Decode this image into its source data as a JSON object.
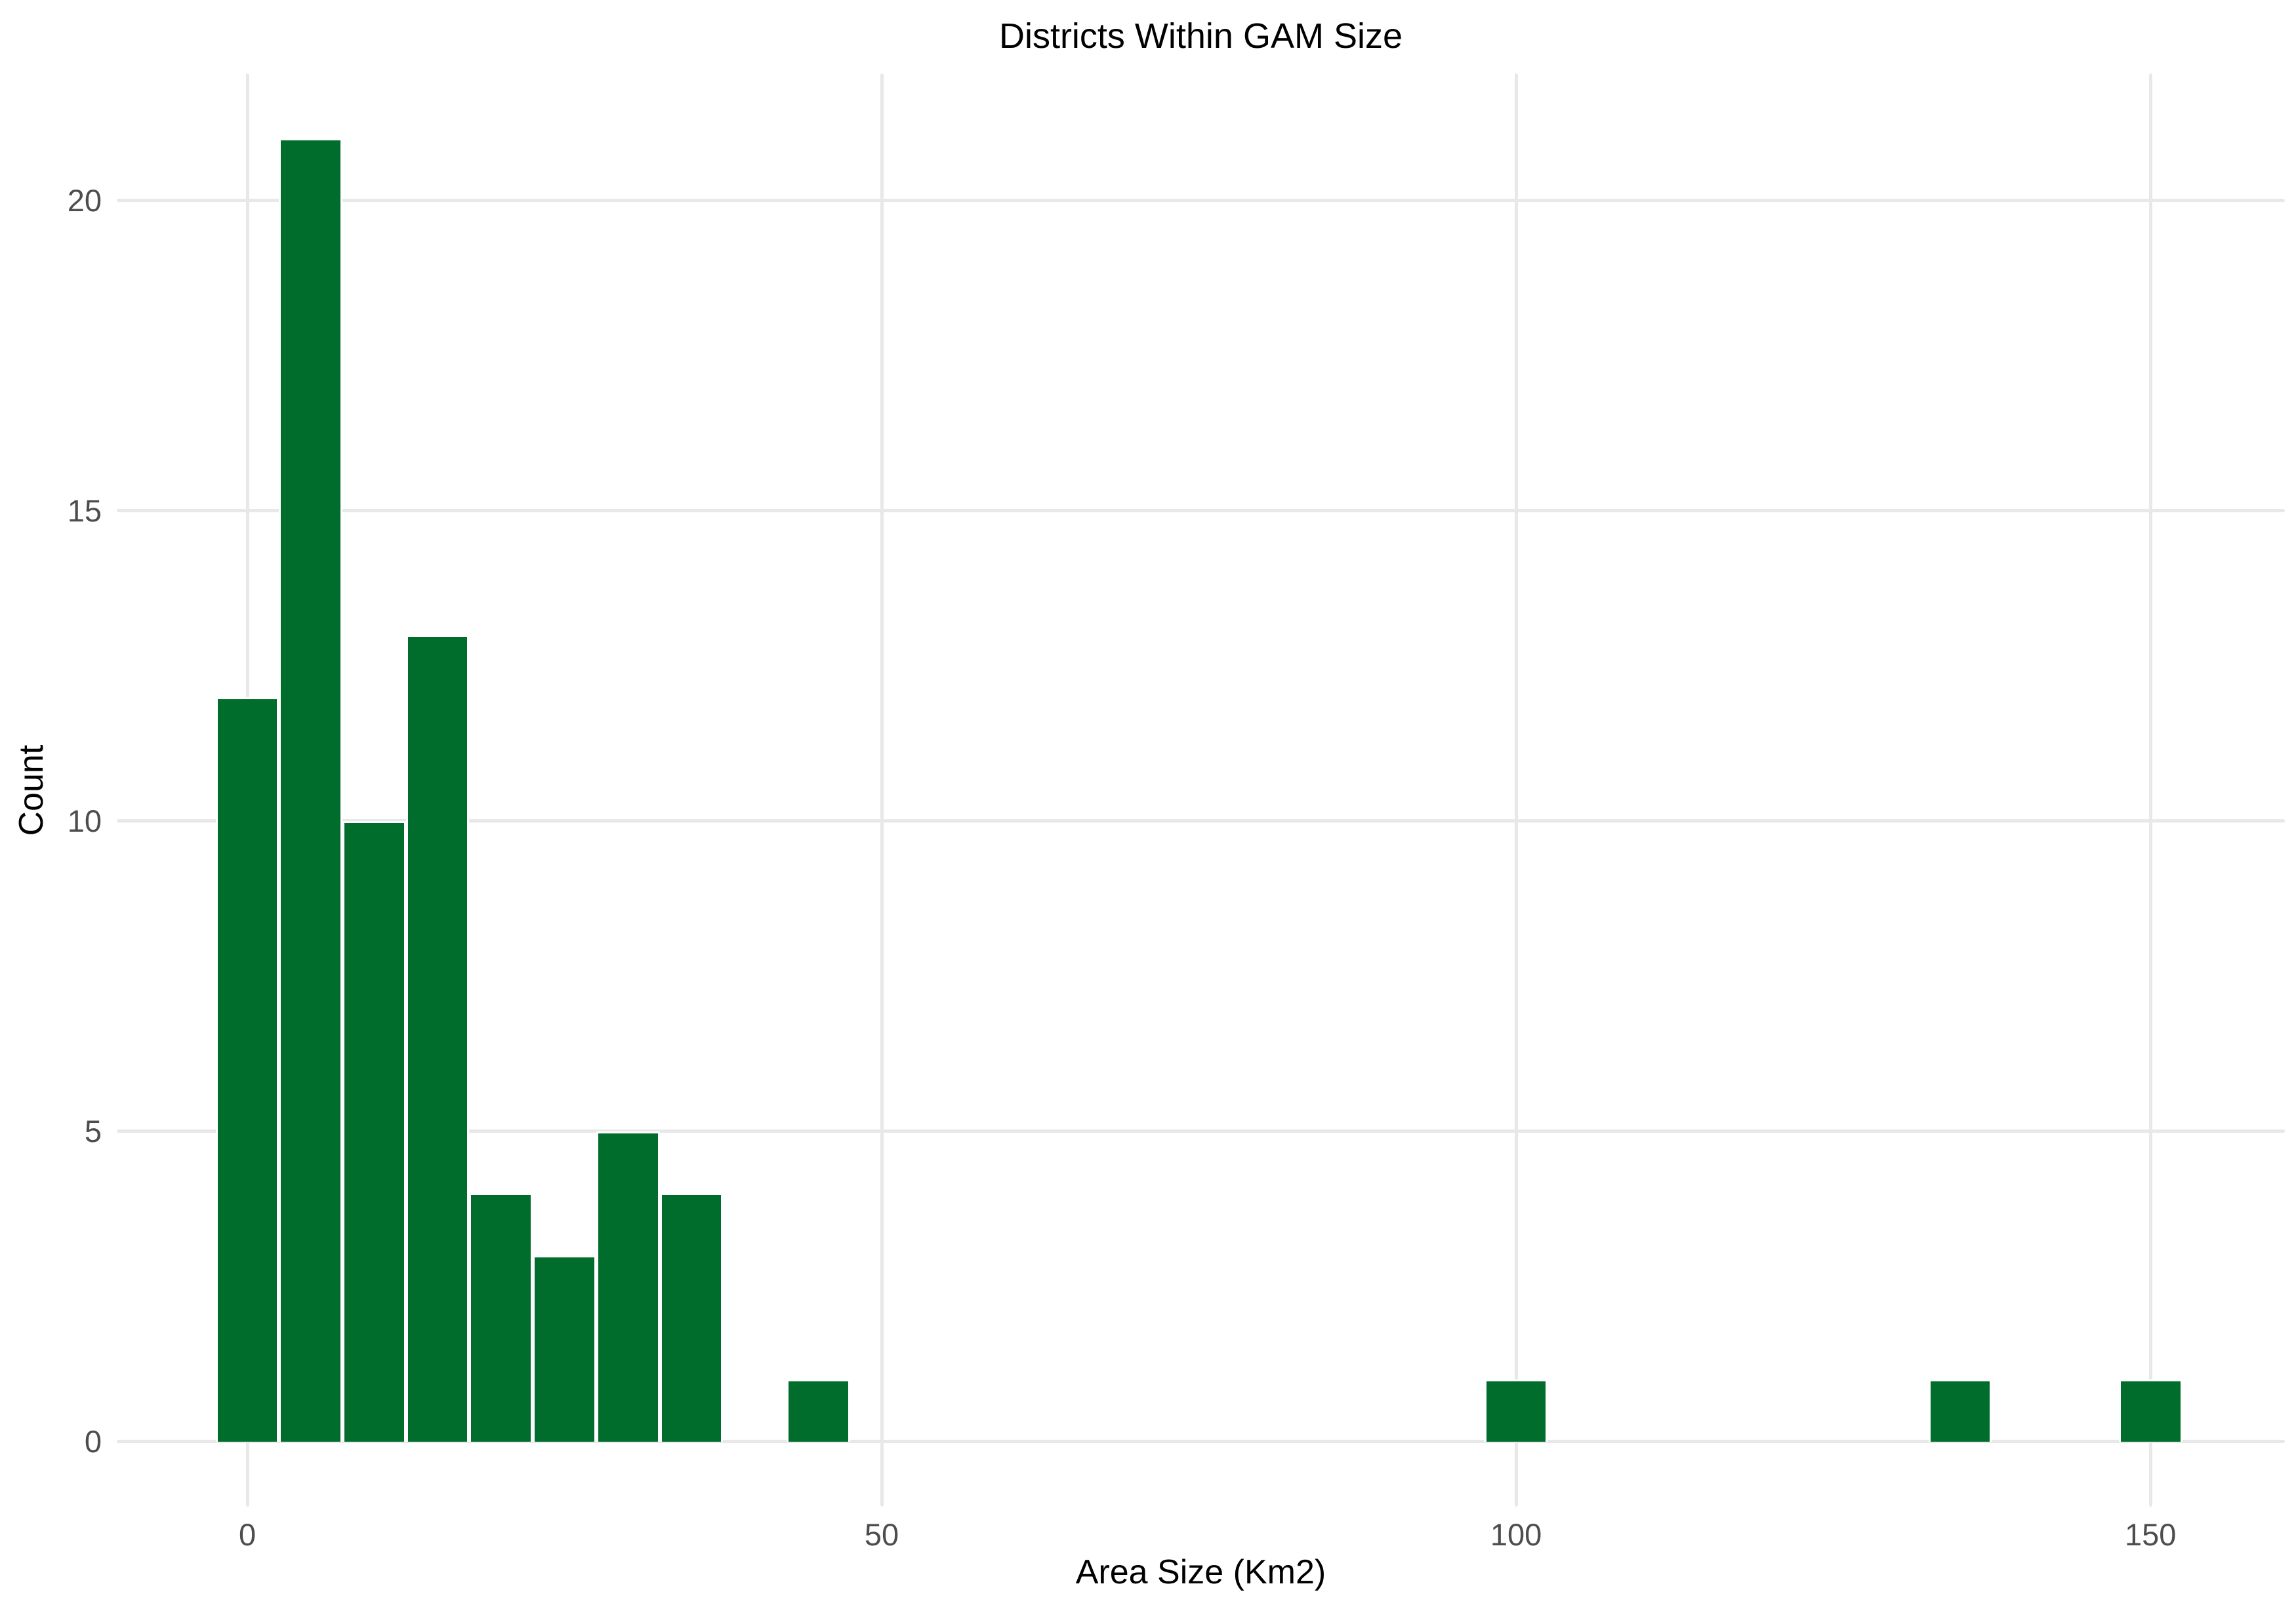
{
  "title": "Districts Within GAM Size",
  "chart_data": {
    "type": "bar",
    "subtype": "histogram",
    "title": "Districts Within GAM Size",
    "xlabel": "Area Size (Km2)",
    "ylabel": "Count",
    "binwidth": 5,
    "bins": [
      {
        "center": 0,
        "count": 12
      },
      {
        "center": 5,
        "count": 21
      },
      {
        "center": 10,
        "count": 10
      },
      {
        "center": 15,
        "count": 13
      },
      {
        "center": 20,
        "count": 4
      },
      {
        "center": 25,
        "count": 3
      },
      {
        "center": 30,
        "count": 5
      },
      {
        "center": 35,
        "count": 4
      },
      {
        "center": 45,
        "count": 1
      },
      {
        "center": 100,
        "count": 1
      },
      {
        "center": 135,
        "count": 1
      },
      {
        "center": 150,
        "count": 1
      }
    ],
    "x_ticks": [
      0,
      50,
      100,
      150
    ],
    "y_ticks": [
      0,
      5,
      10,
      15,
      20
    ],
    "xlim": [
      -10.29,
      160.59
    ],
    "ylim": [
      -1.05,
      22.05
    ],
    "grid": "major-only",
    "legend": "none",
    "colors": {
      "bar_fill": "#006D2C",
      "bar_stroke": "#FFFFFF",
      "gridline": "#E8E8E8",
      "tick_label": "#4D4D4D",
      "title_text": "#000000",
      "background": "#FFFFFF"
    }
  }
}
